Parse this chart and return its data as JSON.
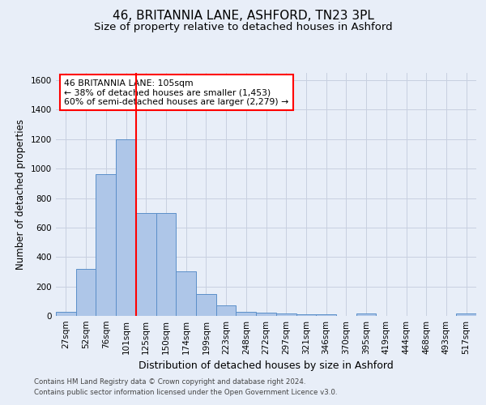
{
  "title": "46, BRITANNIA LANE, ASHFORD, TN23 3PL",
  "subtitle": "Size of property relative to detached houses in Ashford",
  "xlabel": "Distribution of detached houses by size in Ashford",
  "ylabel": "Number of detached properties",
  "footer1": "Contains HM Land Registry data © Crown copyright and database right 2024.",
  "footer2": "Contains public sector information licensed under the Open Government Licence v3.0.",
  "bar_labels": [
    "27sqm",
    "52sqm",
    "76sqm",
    "101sqm",
    "125sqm",
    "150sqm",
    "174sqm",
    "199sqm",
    "223sqm",
    "248sqm",
    "272sqm",
    "297sqm",
    "321sqm",
    "346sqm",
    "370sqm",
    "395sqm",
    "419sqm",
    "444sqm",
    "468sqm",
    "493sqm",
    "517sqm"
  ],
  "bar_values": [
    30,
    320,
    960,
    1200,
    700,
    700,
    300,
    150,
    70,
    30,
    20,
    15,
    10,
    10,
    0,
    15,
    0,
    0,
    0,
    0,
    15
  ],
  "bar_color": "#aec6e8",
  "bar_edge_color": "#5b8fc9",
  "vline_x": 3.5,
  "vline_color": "red",
  "annotation_text": "46 BRITANNIA LANE: 105sqm\n← 38% of detached houses are smaller (1,453)\n60% of semi-detached houses are larger (2,279) →",
  "annotation_box_color": "white",
  "annotation_box_edge": "red",
  "ylim": [
    0,
    1650
  ],
  "yticks": [
    0,
    200,
    400,
    600,
    800,
    1000,
    1200,
    1400,
    1600
  ],
  "grid_color": "#c8d0e0",
  "bg_color": "#e8eef8",
  "title_fontsize": 11,
  "subtitle_fontsize": 9.5,
  "ylabel_fontsize": 8.5,
  "xlabel_fontsize": 9,
  "tick_fontsize": 7.5,
  "footer_fontsize": 6.2,
  "annot_fontsize": 7.8
}
